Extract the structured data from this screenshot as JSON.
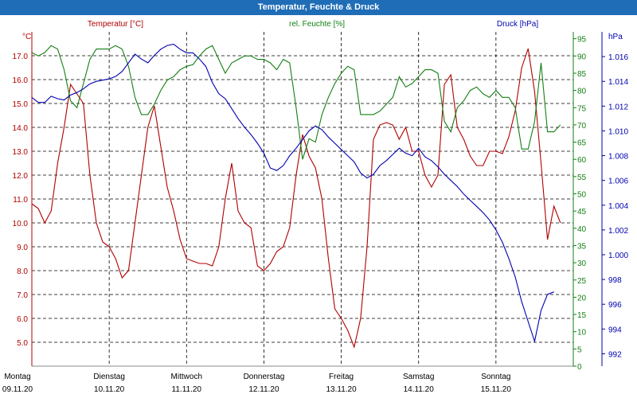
{
  "window_title": "Temperatur, Feuchte & Druck",
  "chart_data": {
    "type": "line",
    "title": "Temperatur, Feuchte & Druck",
    "x_unit": "hours since Montag 09.11.20 00:00",
    "x_range": [
      0,
      168
    ],
    "x_ticks": [
      {
        "day": "Montag",
        "date": "09.11.20"
      },
      {
        "day": "Dienstag",
        "date": "10.11.20"
      },
      {
        "day": "Mittwoch",
        "date": "11.11.20"
      },
      {
        "day": "Donnerstag",
        "date": "12.11.20"
      },
      {
        "day": "Freitag",
        "date": "13.11.20"
      },
      {
        "day": "Samstag",
        "date": "14.11.20"
      },
      {
        "day": "Sonntag",
        "date": "15.11.20"
      }
    ],
    "axes": {
      "temperature": {
        "label": "Temperatur [°C]",
        "unit": "°C",
        "range": [
          4,
          18
        ],
        "ticks": [
          "5.0",
          "6.0",
          "7.0",
          "8.0",
          "9.0",
          "10.0",
          "11.0",
          "12.0",
          "13.0",
          "14.0",
          "15.0",
          "16.0",
          "17.0"
        ]
      },
      "humidity": {
        "label": "rel. Feuchte [%]",
        "unit": "%",
        "range": [
          0,
          97
        ],
        "ticks": [
          "0",
          "5",
          "10",
          "15",
          "20",
          "25",
          "30",
          "35",
          "40",
          "45",
          "50",
          "55",
          "60",
          "65",
          "70",
          "75",
          "80",
          "85",
          "90",
          "95"
        ]
      },
      "pressure": {
        "label": "Druck [hPa]",
        "unit": "hPa",
        "range": [
          991,
          1018
        ],
        "ticks": [
          "992",
          "994",
          "996",
          "998",
          "1.000",
          "1.002",
          "1.004",
          "1.006",
          "1.008",
          "1.010",
          "1.012",
          "1.014",
          "1.016"
        ]
      }
    },
    "grid": true,
    "series": [
      {
        "name": "Temperatur",
        "axis": "temperature",
        "color": "#b00000",
        "points": [
          [
            0,
            10.8
          ],
          [
            2,
            10.6
          ],
          [
            4,
            10
          ],
          [
            6,
            10.5
          ],
          [
            8,
            12.5
          ],
          [
            10,
            14
          ],
          [
            12,
            15.8
          ],
          [
            14,
            15.4
          ],
          [
            16,
            15
          ],
          [
            18,
            12
          ],
          [
            20,
            10
          ],
          [
            22,
            9.2
          ],
          [
            24,
            9
          ],
          [
            26,
            8.5
          ],
          [
            28,
            7.7
          ],
          [
            30,
            8
          ],
          [
            32,
            10
          ],
          [
            34,
            12
          ],
          [
            36,
            14
          ],
          [
            38,
            14.9
          ],
          [
            40,
            13.2
          ],
          [
            42,
            11.5
          ],
          [
            44,
            10.5
          ],
          [
            46,
            9.3
          ],
          [
            48,
            8.5
          ],
          [
            50,
            8.4
          ],
          [
            52,
            8.3
          ],
          [
            54,
            8.3
          ],
          [
            56,
            8.2
          ],
          [
            58,
            9
          ],
          [
            60,
            11
          ],
          [
            62,
            12.5
          ],
          [
            64,
            10.5
          ],
          [
            66,
            10
          ],
          [
            68,
            9.8
          ],
          [
            70,
            8.2
          ],
          [
            72,
            8
          ],
          [
            74,
            8.3
          ],
          [
            76,
            8.8
          ],
          [
            78,
            9
          ],
          [
            80,
            9.8
          ],
          [
            82,
            12
          ],
          [
            84,
            13.7
          ],
          [
            86,
            12.8
          ],
          [
            88,
            12.3
          ],
          [
            90,
            11
          ],
          [
            92,
            8.5
          ],
          [
            94,
            6.4
          ],
          [
            96,
            6
          ],
          [
            98,
            5.5
          ],
          [
            100,
            4.8
          ],
          [
            102,
            6
          ],
          [
            104,
            9
          ],
          [
            106,
            13.5
          ],
          [
            108,
            14.1
          ],
          [
            110,
            14.2
          ],
          [
            112,
            14.1
          ],
          [
            114,
            13.5
          ],
          [
            116,
            14
          ],
          [
            118,
            13
          ],
          [
            120,
            13
          ],
          [
            122,
            12
          ],
          [
            124,
            11.5
          ],
          [
            126,
            12
          ],
          [
            128,
            15.8
          ],
          [
            130,
            16.2
          ],
          [
            132,
            14
          ],
          [
            134,
            13.5
          ],
          [
            136,
            12.8
          ],
          [
            138,
            12.4
          ],
          [
            140,
            12.4
          ],
          [
            142,
            13
          ],
          [
            144,
            13
          ],
          [
            146,
            12.9
          ],
          [
            148,
            13.6
          ],
          [
            150,
            14.7
          ],
          [
            152,
            16.5
          ],
          [
            154,
            17.3
          ],
          [
            156,
            15.5
          ],
          [
            158,
            12.5
          ],
          [
            160,
            9.3
          ],
          [
            162,
            10.7
          ],
          [
            164,
            10
          ]
        ]
      },
      {
        "name": "rel. Feuchte",
        "axis": "humidity",
        "color": "#137f13",
        "points": [
          [
            0,
            91
          ],
          [
            2,
            90
          ],
          [
            4,
            91
          ],
          [
            6,
            93
          ],
          [
            8,
            92
          ],
          [
            10,
            86
          ],
          [
            12,
            77
          ],
          [
            14,
            75
          ],
          [
            16,
            82
          ],
          [
            18,
            89
          ],
          [
            20,
            92
          ],
          [
            22,
            92
          ],
          [
            24,
            92
          ],
          [
            26,
            93
          ],
          [
            28,
            92
          ],
          [
            30,
            87
          ],
          [
            32,
            78
          ],
          [
            34,
            73
          ],
          [
            36,
            73
          ],
          [
            38,
            76
          ],
          [
            40,
            80
          ],
          [
            42,
            83
          ],
          [
            44,
            84
          ],
          [
            46,
            86
          ],
          [
            48,
            87
          ],
          [
            50,
            87.5
          ],
          [
            52,
            90
          ],
          [
            54,
            92
          ],
          [
            56,
            93
          ],
          [
            58,
            89
          ],
          [
            60,
            85
          ],
          [
            62,
            88
          ],
          [
            64,
            89
          ],
          [
            66,
            90
          ],
          [
            68,
            90
          ],
          [
            70,
            89
          ],
          [
            72,
            89
          ],
          [
            74,
            88
          ],
          [
            76,
            86
          ],
          [
            78,
            89
          ],
          [
            80,
            88
          ],
          [
            82,
            75
          ],
          [
            84,
            60
          ],
          [
            86,
            66
          ],
          [
            88,
            65
          ],
          [
            90,
            73
          ],
          [
            92,
            78
          ],
          [
            94,
            82
          ],
          [
            96,
            85
          ],
          [
            98,
            87
          ],
          [
            100,
            86
          ],
          [
            102,
            73
          ],
          [
            104,
            73
          ],
          [
            106,
            73
          ],
          [
            108,
            74
          ],
          [
            110,
            76
          ],
          [
            112,
            78
          ],
          [
            114,
            84
          ],
          [
            116,
            81
          ],
          [
            118,
            82
          ],
          [
            120,
            84
          ],
          [
            122,
            86
          ],
          [
            124,
            86
          ],
          [
            126,
            85
          ],
          [
            128,
            71
          ],
          [
            130,
            68
          ],
          [
            132,
            75
          ],
          [
            134,
            77
          ],
          [
            136,
            80
          ],
          [
            138,
            81
          ],
          [
            140,
            79
          ],
          [
            142,
            78
          ],
          [
            144,
            80
          ],
          [
            146,
            78
          ],
          [
            148,
            78
          ],
          [
            150,
            75
          ],
          [
            152,
            63
          ],
          [
            154,
            63
          ],
          [
            156,
            71
          ],
          [
            158,
            88
          ],
          [
            160,
            68
          ],
          [
            162,
            68
          ],
          [
            164,
            70
          ]
        ]
      },
      {
        "name": "Druck",
        "axis": "pressure",
        "color": "#0000b0",
        "points": [
          [
            0,
            1012.7
          ],
          [
            2,
            1012.3
          ],
          [
            4,
            1012.3
          ],
          [
            6,
            1012.8
          ],
          [
            8,
            1012.6
          ],
          [
            10,
            1012.5
          ],
          [
            12,
            1012.9
          ],
          [
            14,
            1013.1
          ],
          [
            16,
            1013.4
          ],
          [
            18,
            1013.8
          ],
          [
            20,
            1014.0
          ],
          [
            22,
            1014.1
          ],
          [
            24,
            1014.2
          ],
          [
            26,
            1014.4
          ],
          [
            28,
            1014.8
          ],
          [
            30,
            1015.5
          ],
          [
            32,
            1016.2
          ],
          [
            34,
            1015.8
          ],
          [
            36,
            1015.5
          ],
          [
            38,
            1016.1
          ],
          [
            40,
            1016.6
          ],
          [
            42,
            1016.9
          ],
          [
            44,
            1017.0
          ],
          [
            46,
            1016.6
          ],
          [
            48,
            1016.3
          ],
          [
            50,
            1016.3
          ],
          [
            52,
            1015.8
          ],
          [
            54,
            1015.2
          ],
          [
            56,
            1013.9
          ],
          [
            58,
            1013.0
          ],
          [
            60,
            1012.6
          ],
          [
            62,
            1011.8
          ],
          [
            64,
            1011.0
          ],
          [
            66,
            1010.3
          ],
          [
            68,
            1009.7
          ],
          [
            70,
            1009.0
          ],
          [
            72,
            1008.2
          ],
          [
            74,
            1007.0
          ],
          [
            76,
            1006.8
          ],
          [
            78,
            1007.2
          ],
          [
            80,
            1008.0
          ],
          [
            82,
            1008.6
          ],
          [
            84,
            1009.3
          ],
          [
            86,
            1010.0
          ],
          [
            88,
            1010.4
          ],
          [
            90,
            1010.1
          ],
          [
            92,
            1009.5
          ],
          [
            94,
            1009.0
          ],
          [
            96,
            1008.5
          ],
          [
            98,
            1008.0
          ],
          [
            100,
            1007.5
          ],
          [
            102,
            1006.6
          ],
          [
            104,
            1006.2
          ],
          [
            106,
            1006.5
          ],
          [
            108,
            1007.2
          ],
          [
            110,
            1007.6
          ],
          [
            112,
            1008.1
          ],
          [
            114,
            1008.6
          ],
          [
            116,
            1008.2
          ],
          [
            118,
            1008.0
          ],
          [
            120,
            1008.6
          ],
          [
            122,
            1007.9
          ],
          [
            124,
            1007.6
          ],
          [
            126,
            1007.1
          ],
          [
            128,
            1006.5
          ],
          [
            130,
            1006.0
          ],
          [
            132,
            1005.5
          ],
          [
            134,
            1004.9
          ],
          [
            136,
            1004.4
          ],
          [
            138,
            1003.9
          ],
          [
            140,
            1003.4
          ],
          [
            142,
            1002.8
          ],
          [
            144,
            1002.0
          ],
          [
            146,
            1001.0
          ],
          [
            148,
            999.7
          ],
          [
            150,
            998.2
          ],
          [
            152,
            996.2
          ],
          [
            154,
            994.6
          ],
          [
            156,
            993.0
          ],
          [
            158,
            995.5
          ],
          [
            160,
            996.8
          ],
          [
            162,
            997.0
          ]
        ]
      }
    ]
  }
}
